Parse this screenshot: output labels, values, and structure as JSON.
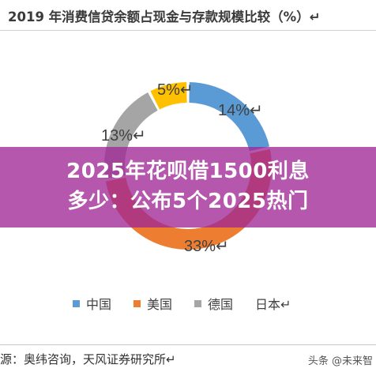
{
  "chart_data": {
    "type": "pie",
    "title": "2019 年消费信贷余额占现金与存款规模比较（%）↵",
    "categories": [
      "中国",
      "美国",
      "德国",
      "日本"
    ],
    "values": [
      14,
      33,
      13,
      5
    ],
    "value_labels": [
      "14%↵",
      "33%↵",
      "13%↵",
      "5%↵"
    ],
    "colors": [
      "#5b9bd5",
      "#ed7d31",
      "#a5a5a5",
      "#ffc000"
    ],
    "legend_labels": [
      "中国",
      "美国",
      "德国",
      "日本↵"
    ],
    "legend": "bottom"
  },
  "overlay": {
    "line1": "2025年花呗借1500利息",
    "line2": "多少：公布5个2025热门"
  },
  "source": "源：奥纬咨询，天风证券研究所↵",
  "watermark": "头条 @未来智"
}
